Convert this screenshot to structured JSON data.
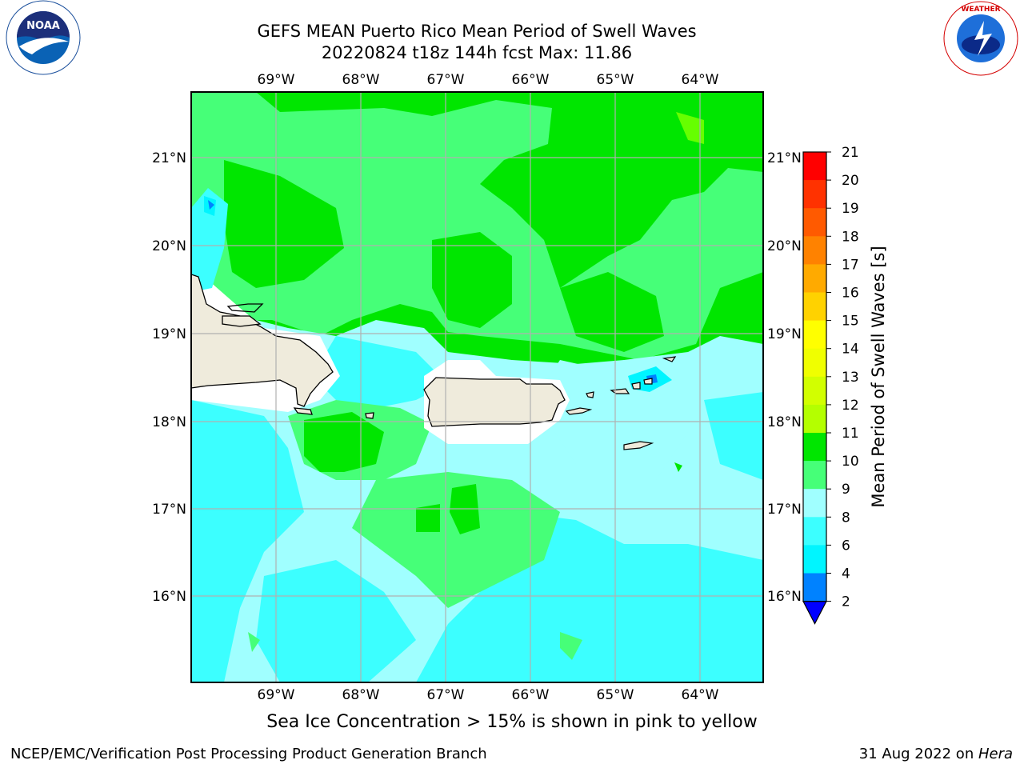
{
  "title": {
    "line1": "GEFS MEAN Puerto Rico Mean Period of Swell Waves",
    "line2": "20220824 t18z 144h fcst   Max: 11.86"
  },
  "map": {
    "lon_labels": [
      "69°W",
      "68°W",
      "67°W",
      "66°W",
      "65°W",
      "64°W"
    ],
    "lat_labels": [
      "21°N",
      "20°N",
      "19°N",
      "18°N",
      "17°N",
      "16°N"
    ],
    "background_color": "#00e600",
    "land_color": "#efebdc"
  },
  "colorbar": {
    "label": "Mean Period of Swell Waves [s]",
    "ticks": [
      "21",
      "20",
      "19",
      "18",
      "17",
      "16",
      "15",
      "14",
      "13",
      "12",
      "11",
      "10",
      "9",
      "8",
      "6",
      "4",
      "2"
    ],
    "colors": [
      "#ff0000",
      "#ff3200",
      "#ff5a00",
      "#ff8200",
      "#ffaa00",
      "#ffd200",
      "#ffff00",
      "#f0ff00",
      "#d2ff00",
      "#b4ff00",
      "#00e600",
      "#46ff78",
      "#a0ffff",
      "#3cffff",
      "#00f5ff",
      "#0082ff",
      "#0000ff"
    ],
    "under_color": "#0000ff"
  },
  "footer": {
    "note": "Sea Ice Concentration > 15% is shown in pink to yellow",
    "left": "NCEP/EMC/Verification Post Processing Product Generation Branch",
    "right_prefix": "31 Aug 2022 on ",
    "right_host": "Hera"
  },
  "logos": {
    "left": "noaa-logo",
    "right": "nws-logo"
  }
}
